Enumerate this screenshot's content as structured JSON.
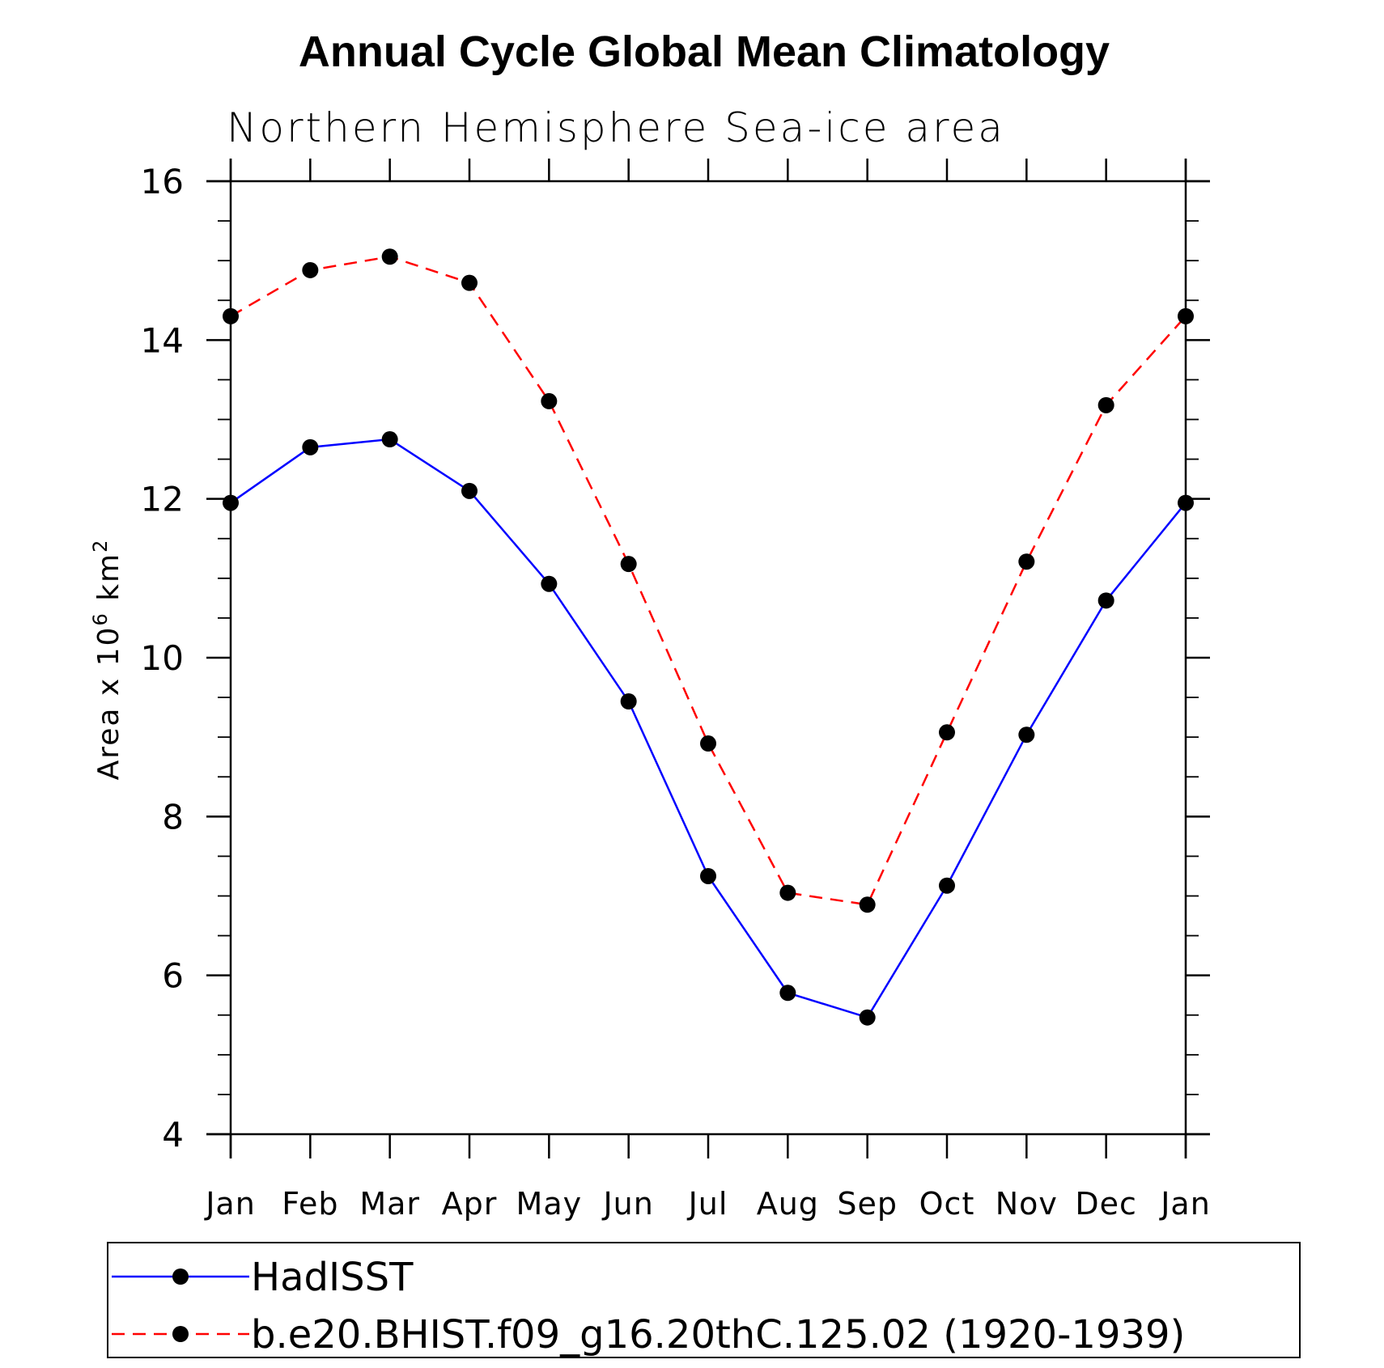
{
  "chart_data": {
    "type": "line",
    "title": "Annual Cycle Global Mean Climatology",
    "subtitle": "Northern Hemisphere Sea-ice area",
    "ylabel": {
      "prefix": "Area x 10",
      "exp1": "6",
      "unit": " km",
      "exp2": "2"
    },
    "xlabel": "",
    "categories": [
      "Jan",
      "Feb",
      "Mar",
      "Apr",
      "May",
      "Jun",
      "Jul",
      "Aug",
      "Sep",
      "Oct",
      "Nov",
      "Dec",
      "Jan"
    ],
    "ylim": [
      4,
      16
    ],
    "yticks": [
      4,
      6,
      8,
      10,
      12,
      14,
      16
    ],
    "yticks_minor_step": 0.5,
    "series": [
      {
        "name": "HadISST",
        "color": "#0000ff",
        "style": "solid",
        "values": [
          11.95,
          12.65,
          12.75,
          12.1,
          10.93,
          9.45,
          7.25,
          5.78,
          5.47,
          7.13,
          9.03,
          10.72,
          11.95
        ]
      },
      {
        "name": "b.e20.BHIST.f09_g16.20thC.125.02 (1920-1939)",
        "color": "#ff0000",
        "style": "dashed",
        "values": [
          14.3,
          14.88,
          15.05,
          14.72,
          13.23,
          11.18,
          8.92,
          7.04,
          6.89,
          9.06,
          11.21,
          13.18,
          14.3
        ]
      }
    ],
    "marker_color": "#000000",
    "legend_position": "bottom"
  }
}
